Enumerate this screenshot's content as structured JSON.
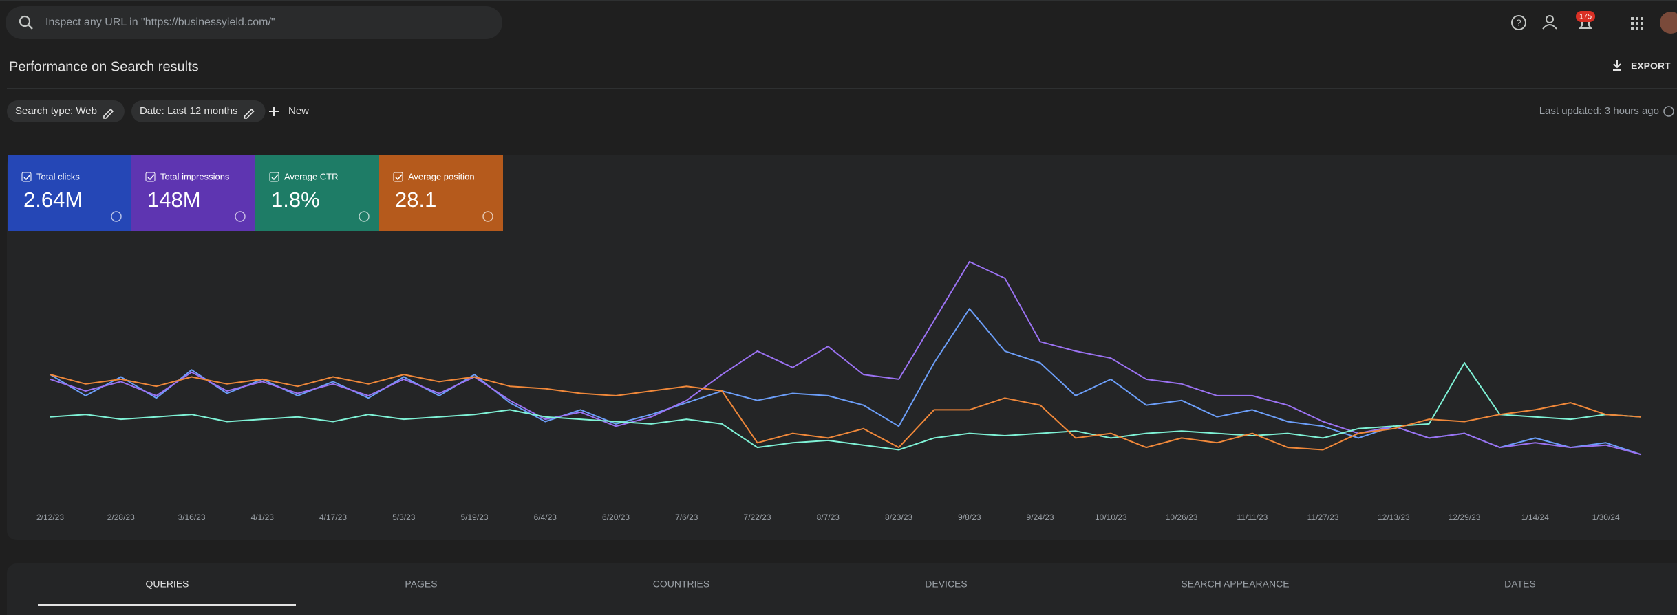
{
  "top_bar": {
    "search_placeholder": "Inspect any URL in \"https://businessyield.com/\"",
    "notification_count": "175"
  },
  "header": {
    "title": "Performance on Search results",
    "export": "EXPORT"
  },
  "filters": {
    "chips": [
      "Search type: Web",
      "Date: Last 12 months"
    ],
    "new": "New",
    "last_updated": "Last updated: 3 hours ago"
  },
  "chart_data": {
    "type": "line",
    "categories": [
      "2/12/23",
      null,
      "2/28/23",
      null,
      "3/16/23",
      null,
      "4/1/23",
      null,
      "4/17/23",
      null,
      "5/3/23",
      null,
      "5/19/23",
      null,
      "6/4/23",
      null,
      "6/20/23",
      null,
      "7/6/23",
      null,
      "7/22/23",
      null,
      "8/7/23",
      null,
      "8/23/23",
      null,
      "9/8/23",
      null,
      "9/24/23",
      null,
      "10/10/23",
      null,
      "10/26/23",
      null,
      "11/11/23",
      null,
      "11/27/23",
      null,
      "12/13/23",
      null,
      "12/29/23",
      null,
      "1/14/24",
      null,
      "1/30/24",
      null
    ],
    "ylim": [
      0,
      100
    ],
    "series": [
      {
        "name": "Total clicks",
        "total": "2.64M",
        "tile_color": "#2547b6",
        "color": "#6c9ef8",
        "values": [
          45,
          36,
          44,
          35,
          47,
          37,
          43,
          36,
          42,
          35,
          44,
          36,
          45,
          33,
          25,
          30,
          24,
          28,
          33,
          38,
          34,
          37,
          36,
          32,
          23,
          50,
          73,
          55,
          50,
          36,
          43,
          32,
          34,
          27,
          30,
          25,
          23,
          18,
          23,
          18,
          20,
          14,
          18,
          14,
          16,
          11
        ]
      },
      {
        "name": "Total impressions",
        "total": "148M",
        "tile_color": "#5e35b1",
        "color": "#9b72f2",
        "values": [
          43,
          38,
          42,
          36,
          46,
          38,
          42,
          37,
          41,
          36,
          43,
          37,
          44,
          34,
          26,
          29,
          23,
          27,
          34,
          45,
          55,
          48,
          57,
          45,
          43,
          68,
          93,
          86,
          59,
          55,
          52,
          43,
          41,
          36,
          36,
          32,
          25,
          20,
          23,
          18,
          20,
          14,
          16,
          14,
          15,
          11
        ]
      },
      {
        "name": "Average CTR",
        "total": "1.8%",
        "tile_color": "#1e7c66",
        "color": "#7ff2d6",
        "values": [
          27,
          28,
          26,
          27,
          28,
          25,
          26,
          27,
          25,
          28,
          26,
          27,
          28,
          30,
          27,
          26,
          25,
          24,
          26,
          24,
          14,
          16,
          17,
          15,
          13,
          18,
          20,
          19,
          20,
          21,
          18,
          20,
          21,
          20,
          19,
          20,
          18,
          22,
          23,
          24,
          50,
          28,
          27,
          26,
          28,
          27
        ]
      },
      {
        "name": "Average position",
        "total": "28.1",
        "tile_color": "#b55a1c",
        "color": "#f0883a",
        "values": [
          45,
          41,
          43,
          40,
          44,
          41,
          43,
          40,
          44,
          41,
          45,
          42,
          44,
          40,
          39,
          37,
          36,
          38,
          40,
          38,
          16,
          20,
          18,
          22,
          14,
          30,
          30,
          35,
          32,
          18,
          20,
          14,
          18,
          16,
          20,
          14,
          13,
          20,
          22,
          26,
          25,
          28,
          30,
          33,
          28,
          27
        ]
      }
    ]
  },
  "tabs": [
    "QUERIES",
    "PAGES",
    "COUNTRIES",
    "DEVICES",
    "SEARCH APPEARANCE",
    "DATES"
  ]
}
